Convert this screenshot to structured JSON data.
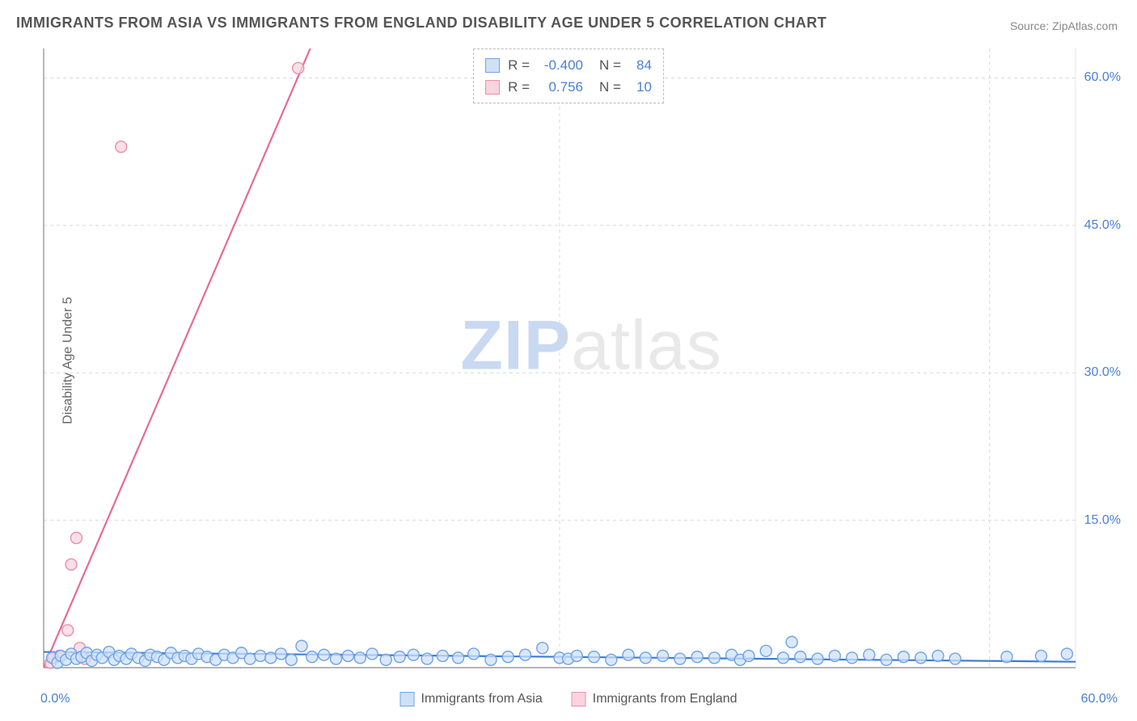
{
  "title": "IMMIGRANTS FROM ASIA VS IMMIGRANTS FROM ENGLAND DISABILITY AGE UNDER 5 CORRELATION CHART",
  "source_label": "Source:",
  "source_site": "ZipAtlas.com",
  "ylabel": "Disability Age Under 5",
  "watermark_zip": "ZIP",
  "watermark_rest": "atlas",
  "chart": {
    "type": "scatter",
    "xlim": [
      0,
      60
    ],
    "ylim": [
      0,
      63
    ],
    "x_ticks": [
      0,
      60
    ],
    "x_tick_labels": [
      "0.0%",
      "60.0%"
    ],
    "y_ticks": [
      15,
      30,
      45,
      60
    ],
    "y_tick_labels": [
      "15.0%",
      "30.0%",
      "45.0%",
      "60.0%"
    ],
    "grid_color": "#d9d9d9",
    "axis_color": "#888888",
    "background_color": "#ffffff",
    "marker_radius": 7,
    "marker_stroke_width": 1.4,
    "line_width": 2.2
  },
  "series": {
    "asia": {
      "label": "Immigrants from Asia",
      "fill": "#cfe0f7",
      "stroke": "#6ea3e8",
      "line_color": "#3f7ad6",
      "R": "-0.400",
      "N": "84",
      "trend": {
        "x1": 0,
        "y1": 1.6,
        "x2": 60,
        "y2": 0.6
      },
      "points": [
        [
          0.5,
          1.0
        ],
        [
          0.8,
          0.5
        ],
        [
          1.0,
          1.2
        ],
        [
          1.3,
          0.8
        ],
        [
          1.6,
          1.4
        ],
        [
          1.9,
          0.9
        ],
        [
          2.2,
          1.1
        ],
        [
          2.5,
          1.5
        ],
        [
          2.8,
          0.7
        ],
        [
          3.1,
          1.3
        ],
        [
          3.4,
          1.0
        ],
        [
          3.8,
          1.6
        ],
        [
          4.1,
          0.8
        ],
        [
          4.4,
          1.2
        ],
        [
          4.8,
          0.9
        ],
        [
          5.1,
          1.4
        ],
        [
          5.5,
          1.0
        ],
        [
          5.9,
          0.7
        ],
        [
          6.2,
          1.3
        ],
        [
          6.6,
          1.1
        ],
        [
          7.0,
          0.8
        ],
        [
          7.4,
          1.5
        ],
        [
          7.8,
          1.0
        ],
        [
          8.2,
          1.2
        ],
        [
          8.6,
          0.9
        ],
        [
          9.0,
          1.4
        ],
        [
          9.5,
          1.1
        ],
        [
          10.0,
          0.8
        ],
        [
          10.5,
          1.3
        ],
        [
          11.0,
          1.0
        ],
        [
          11.5,
          1.5
        ],
        [
          12.0,
          0.9
        ],
        [
          12.6,
          1.2
        ],
        [
          13.2,
          1.0
        ],
        [
          13.8,
          1.4
        ],
        [
          14.4,
          0.8
        ],
        [
          15.0,
          2.2
        ],
        [
          15.6,
          1.1
        ],
        [
          16.3,
          1.3
        ],
        [
          17.0,
          0.9
        ],
        [
          17.7,
          1.2
        ],
        [
          18.4,
          1.0
        ],
        [
          19.1,
          1.4
        ],
        [
          19.9,
          0.8
        ],
        [
          20.7,
          1.1
        ],
        [
          21.5,
          1.3
        ],
        [
          22.3,
          0.9
        ],
        [
          23.2,
          1.2
        ],
        [
          24.1,
          1.0
        ],
        [
          25.0,
          1.4
        ],
        [
          26.0,
          0.8
        ],
        [
          27.0,
          1.1
        ],
        [
          28.0,
          1.3
        ],
        [
          29.0,
          2.0
        ],
        [
          30.0,
          1.0
        ],
        [
          30.5,
          0.9
        ],
        [
          31.0,
          1.2
        ],
        [
          32.0,
          1.1
        ],
        [
          33.0,
          0.8
        ],
        [
          34.0,
          1.3
        ],
        [
          35.0,
          1.0
        ],
        [
          36.0,
          1.2
        ],
        [
          37.0,
          0.9
        ],
        [
          38.0,
          1.1
        ],
        [
          39.0,
          1.0
        ],
        [
          40.0,
          1.3
        ],
        [
          40.5,
          0.8
        ],
        [
          41.0,
          1.2
        ],
        [
          42.0,
          1.7
        ],
        [
          43.0,
          1.0
        ],
        [
          43.5,
          2.6
        ],
        [
          44.0,
          1.1
        ],
        [
          45.0,
          0.9
        ],
        [
          46.0,
          1.2
        ],
        [
          47.0,
          1.0
        ],
        [
          48.0,
          1.3
        ],
        [
          49.0,
          0.8
        ],
        [
          50.0,
          1.1
        ],
        [
          51.0,
          1.0
        ],
        [
          52.0,
          1.2
        ],
        [
          53.0,
          0.9
        ],
        [
          56.0,
          1.1
        ],
        [
          58.0,
          1.2
        ],
        [
          59.5,
          1.4
        ]
      ]
    },
    "england": {
      "label": "Immigrants from England",
      "fill": "#f8d4de",
      "stroke": "#e98fab",
      "line_color": "#e76a95",
      "R": "0.756",
      "N": "10",
      "trend": {
        "x1": 0,
        "y1": 0.0,
        "x2": 15.5,
        "y2": 63.0
      },
      "points": [
        [
          0.4,
          0.5
        ],
        [
          0.6,
          1.0
        ],
        [
          0.9,
          1.2
        ],
        [
          1.4,
          3.8
        ],
        [
          1.6,
          10.5
        ],
        [
          1.9,
          13.2
        ],
        [
          2.1,
          2.0
        ],
        [
          2.4,
          0.9
        ],
        [
          4.5,
          53.0
        ],
        [
          14.8,
          61.0
        ]
      ]
    }
  },
  "top_legend": {
    "r_label_prefix": "R =",
    "n_label_prefix": "N ="
  }
}
